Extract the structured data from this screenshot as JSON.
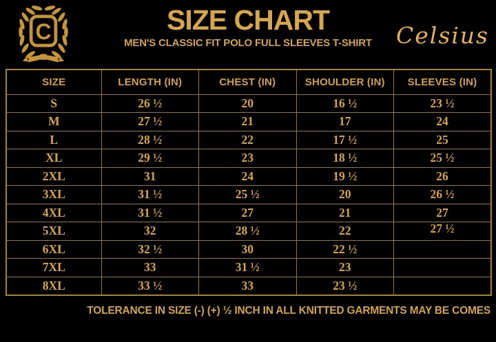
{
  "colors": {
    "background": "#000000",
    "gold_text": "#d8a64a",
    "gold_table_values": "#d9a63f",
    "gold_border": "#97792b",
    "gold_logo": "#c49539",
    "gold_script": "#e7b152"
  },
  "header": {
    "logo_letter": "C",
    "brand": "Celsius"
  },
  "chart_data": {
    "type": "table",
    "title": "SIZE CHART",
    "subtitle": "MEN'S CLASSIC FIT POLO FULL SLEEVES T-SHIRT",
    "columns": [
      "SIZE",
      "LENGTH (IN)",
      "CHEST (IN)",
      "SHOULDER (IN)",
      "SLEEVES (IN)"
    ],
    "rows": [
      [
        "S",
        "26 ½",
        "20",
        "16 ½",
        "23 ½"
      ],
      [
        "M",
        "27 ½",
        "21",
        "17",
        "24"
      ],
      [
        "L",
        "28 ½",
        "22",
        "17 ½",
        "25"
      ],
      [
        "XL",
        "29 ½",
        "23",
        "18 ½",
        "25 ½"
      ],
      [
        "2XL",
        "31",
        "24",
        "19 ½",
        "26"
      ],
      [
        "3XL",
        "31 ½",
        "25 ½",
        "20",
        "26 ½"
      ],
      [
        "4XL",
        "31 ½",
        "27",
        "21",
        "27"
      ],
      [
        "5XL",
        "32",
        "28 ½",
        "22",
        "27 ½"
      ],
      [
        "6XL",
        "32 ½",
        "30",
        "22 ½",
        ""
      ],
      [
        "7XL",
        "33",
        "31 ½",
        "23",
        ""
      ],
      [
        "8XL",
        "33 ½",
        "33",
        "23 ½",
        ""
      ]
    ]
  },
  "footer": {
    "note": "TOLERANCE IN SIZE (-) (+) ½ INCH IN ALL KNITTED GARMENTS MAY BE COMES"
  }
}
